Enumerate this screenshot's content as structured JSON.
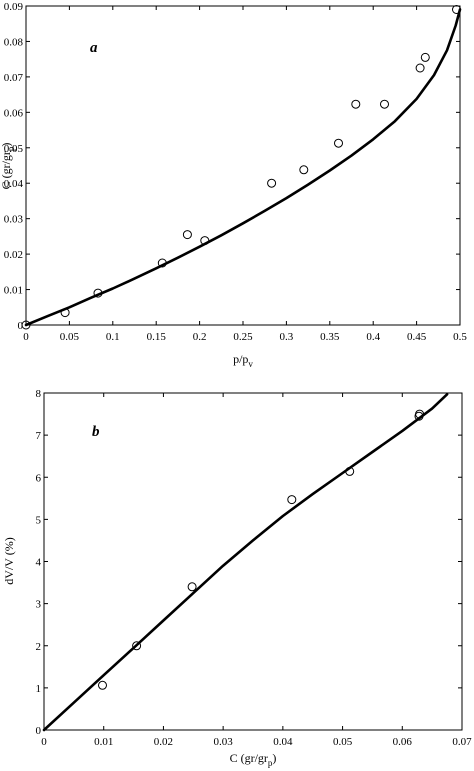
{
  "chart_data": [
    {
      "type": "scatter",
      "panel_label": "a",
      "xlabel": "p/p",
      "xlabel_sub": "v",
      "ylabel": "C (gr/gr",
      "ylabel_sub": "p",
      "ylabel_end": ")",
      "xlim": [
        0,
        0.5
      ],
      "ylim": [
        0,
        0.09
      ],
      "xticks": [
        0,
        0.05,
        0.1,
        0.15,
        0.2,
        0.25,
        0.3,
        0.35,
        0.4,
        0.45,
        0.5
      ],
      "yticks": [
        0,
        0.01,
        0.02,
        0.03,
        0.04,
        0.05,
        0.06,
        0.07,
        0.08,
        0.09
      ],
      "xtick_labels": [
        "0",
        "0.05",
        "0.1",
        "0.15",
        "0.2",
        "0.25",
        "0.3",
        "0.35",
        "0.4",
        "0.45",
        "0.5"
      ],
      "ytick_labels": [
        "0",
        "0.01",
        "0.02",
        "0.03",
        "0.04",
        "0.05",
        "0.06",
        "0.07",
        "0.08",
        "0.09"
      ],
      "series": [
        {
          "kind": "points",
          "x": [
            0.0,
            0.045,
            0.083,
            0.157,
            0.186,
            0.206,
            0.283,
            0.32,
            0.36,
            0.38,
            0.413,
            0.454,
            0.46,
            0.496
          ],
          "y": [
            0.0,
            0.0035,
            0.009,
            0.0175,
            0.0255,
            0.0238,
            0.04,
            0.0438,
            0.0513,
            0.0623,
            0.0623,
            0.0725,
            0.0755,
            0.089
          ]
        },
        {
          "kind": "line",
          "x": [
            0.0,
            0.025,
            0.05,
            0.075,
            0.1,
            0.125,
            0.15,
            0.175,
            0.2,
            0.225,
            0.25,
            0.275,
            0.3,
            0.325,
            0.35,
            0.375,
            0.4,
            0.425,
            0.45,
            0.47,
            0.485,
            0.495,
            0.5
          ],
          "y": [
            0.0,
            0.0025,
            0.005,
            0.0077,
            0.0103,
            0.0131,
            0.016,
            0.019,
            0.0221,
            0.0253,
            0.0287,
            0.0322,
            0.0358,
            0.0396,
            0.0436,
            0.0478,
            0.0524,
            0.0575,
            0.0638,
            0.0705,
            0.0775,
            0.0845,
            0.089
          ]
        }
      ]
    },
    {
      "type": "scatter",
      "panel_label": "b",
      "xlabel": "C (gr/gr",
      "xlabel_sub": "p",
      "xlabel_end": ")",
      "ylabel": "dV/V (%)",
      "xlim": [
        0,
        0.07
      ],
      "ylim": [
        0,
        8
      ],
      "xticks": [
        0,
        0.01,
        0.02,
        0.03,
        0.04,
        0.05,
        0.06,
        0.07
      ],
      "yticks": [
        0,
        1,
        2,
        3,
        4,
        5,
        6,
        7,
        8
      ],
      "xtick_labels": [
        "0",
        "0.01",
        "0.02",
        "0.03",
        "0.04",
        "0.05",
        "0.06",
        "0.07"
      ],
      "ytick_labels": [
        "0",
        "1",
        "2",
        "3",
        "4",
        "5",
        "6",
        "7",
        "8"
      ],
      "series": [
        {
          "kind": "points",
          "x": [
            0.0098,
            0.0155,
            0.0248,
            0.0415,
            0.0512,
            0.0628,
            0.0629
          ],
          "y": [
            1.06,
            2.0,
            3.4,
            5.47,
            6.14,
            7.45,
            7.5
          ]
        },
        {
          "kind": "line",
          "x": [
            0.0,
            0.005,
            0.01,
            0.015,
            0.02,
            0.025,
            0.03,
            0.035,
            0.04,
            0.045,
            0.05,
            0.055,
            0.06,
            0.065,
            0.0675
          ],
          "y": [
            0.0,
            0.65,
            1.3,
            1.95,
            2.6,
            3.25,
            3.9,
            4.5,
            5.08,
            5.6,
            6.1,
            6.6,
            7.1,
            7.63,
            7.97
          ]
        }
      ]
    }
  ]
}
